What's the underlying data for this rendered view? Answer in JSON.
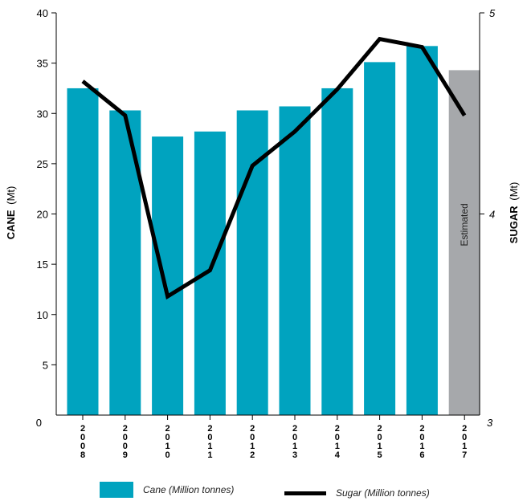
{
  "chart_data": {
    "type": "bar",
    "categories": [
      "2008",
      "2009",
      "2010",
      "2011",
      "2012",
      "2013",
      "2014",
      "2015",
      "2016",
      "2017"
    ],
    "series": [
      {
        "name": "Cane (Million tonnes)",
        "type": "bar",
        "axis": "left",
        "values": [
          32.5,
          30.3,
          27.7,
          28.2,
          30.3,
          30.7,
          32.5,
          35.1,
          36.7,
          34.3
        ]
      },
      {
        "name": "Sugar (Million tonnes)",
        "type": "line",
        "axis": "right",
        "values": [
          4.66,
          4.49,
          3.59,
          3.72,
          4.24,
          4.41,
          4.62,
          4.87,
          4.83,
          4.49
        ]
      }
    ],
    "estimated_category": "2017",
    "estimated_label": "Estimated",
    "y_left": {
      "label_main": "CANE",
      "label_unit": "(Mt)",
      "ylim": [
        0,
        40
      ],
      "ticks": [
        0,
        5,
        10,
        15,
        20,
        25,
        30,
        35,
        40
      ]
    },
    "y_right": {
      "label_main": "SUGAR",
      "label_unit": "(Mt)",
      "ylim": [
        3,
        5
      ],
      "ticks": [
        3,
        4,
        5
      ]
    },
    "grid": false,
    "legend_position": "bottom",
    "colors": {
      "bar": "#00a3bf",
      "estimated_bar": "#a6a8ab",
      "line": "#000000"
    }
  }
}
